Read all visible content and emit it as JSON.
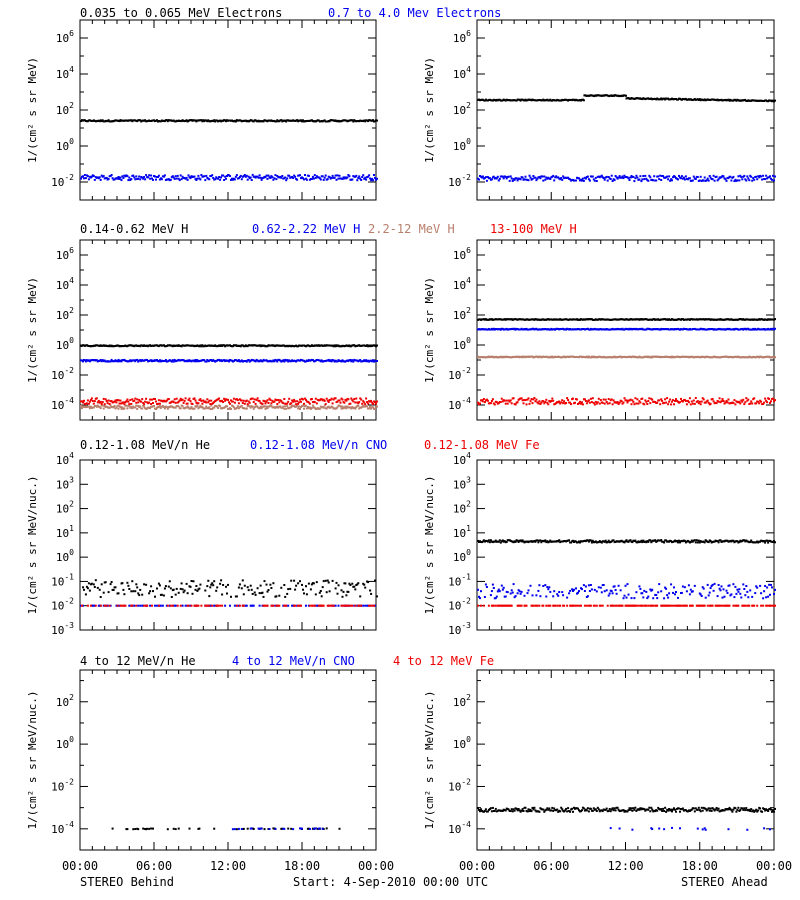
{
  "colors": {
    "black": "#000000",
    "blue": "#0000ee",
    "brown": "#b87f6c",
    "red": "#ee0000"
  },
  "footer": {
    "left": "STEREO Behind",
    "center": "Start:  4-Sep-2010 00:00 UTC",
    "right": "STEREO Ahead"
  },
  "chart_data": [
    {
      "type": "scatter",
      "row": 0,
      "legend": [
        {
          "text": "0.035 to 0.065 MeV Electrons",
          "color": "black"
        },
        {
          "text": "0.7 to 4.0 Mev Electrons",
          "color": "blue"
        }
      ],
      "ylabel": "1/(cm² s sr MeV)",
      "yscale": "log",
      "ylim_exp": [
        -3,
        7
      ],
      "ytick_exps": [
        -2,
        0,
        2,
        4,
        6
      ],
      "x_ticks": [
        "00:00",
        "06:00",
        "12:00",
        "18:00",
        "00:00"
      ],
      "xlim_hours": [
        0,
        24
      ],
      "panels": [
        {
          "name": "STEREO Behind",
          "series": [
            {
              "color": "black",
              "segments": [
                [
                  0,
                  24,
                  1.4
                ]
              ],
              "noise": 0.04
            },
            {
              "color": "blue",
              "segments": [
                [
                  0,
                  24,
                  -1.75
                ]
              ],
              "noise": 0.15
            }
          ]
        },
        {
          "name": "STEREO Ahead",
          "series": [
            {
              "color": "black",
              "segments": [
                [
                  0,
                  8.6,
                  2.55
                ],
                [
                  8.6,
                  12,
                  2.8
                ],
                [
                  12,
                  24,
                  2.65,
                  2.5
                ]
              ],
              "noise": 0.03
            },
            {
              "color": "blue",
              "segments": [
                [
                  0,
                  24,
                  -1.8
                ]
              ],
              "noise": 0.15
            }
          ]
        }
      ]
    },
    {
      "type": "scatter",
      "row": 1,
      "legend": [
        {
          "text": "0.14-0.62 MeV H",
          "color": "black"
        },
        {
          "text": "0.62-2.22 MeV H",
          "color": "blue"
        },
        {
          "text": "2.2-12 MeV H",
          "color": "brown"
        },
        {
          "text": "13-100 MeV H",
          "color": "red"
        }
      ],
      "ylabel": "1/(cm² s sr MeV)",
      "yscale": "log",
      "ylim_exp": [
        -5,
        7
      ],
      "ytick_exps": [
        -4,
        -2,
        0,
        2,
        4,
        6
      ],
      "x_ticks": [
        "00:00",
        "06:00",
        "12:00",
        "18:00",
        "00:00"
      ],
      "xlim_hours": [
        0,
        24
      ],
      "panels": [
        {
          "name": "STEREO Behind",
          "series": [
            {
              "color": "black",
              "segments": [
                [
                  0,
                  24,
                  -0.05
                ]
              ],
              "noise": 0.04
            },
            {
              "color": "blue",
              "segments": [
                [
                  0,
                  24,
                  -1.05
                ]
              ],
              "noise": 0.06
            },
            {
              "color": "brown",
              "segments": [
                [
                  0,
                  24,
                  -4.15
                ]
              ],
              "noise": 0.12
            },
            {
              "color": "red",
              "segments": [
                [
                  0,
                  24,
                  -3.75
                ]
              ],
              "noise": 0.2
            }
          ]
        },
        {
          "name": "STEREO Ahead",
          "series": [
            {
              "color": "black",
              "segments": [
                [
                  0,
                  24,
                  1.7
                ]
              ],
              "noise": 0.03
            },
            {
              "color": "blue",
              "segments": [
                [
                  0,
                  24,
                  1.05
                ]
              ],
              "noise": 0.03
            },
            {
              "color": "brown",
              "segments": [
                [
                  0,
                  24,
                  -0.8
                ]
              ],
              "noise": 0.03
            },
            {
              "color": "red",
              "segments": [
                [
                  0,
                  24,
                  -3.75
                ]
              ],
              "noise": 0.22
            }
          ]
        }
      ]
    },
    {
      "type": "scatter",
      "row": 2,
      "legend": [
        {
          "text": "0.12-1.08 MeV/n He",
          "color": "black"
        },
        {
          "text": "0.12-1.08 MeV/n CNO",
          "color": "blue"
        },
        {
          "text": "0.12-1.08 MeV Fe",
          "color": "red"
        }
      ],
      "ylabel": "1/(cm² s sr MeV/nuc.)",
      "yscale": "log",
      "ylim_exp": [
        -3,
        4
      ],
      "ytick_exps": [
        -3,
        -2,
        -1,
        0,
        1,
        2,
        3,
        4
      ],
      "x_ticks": [
        "00:00",
        "06:00",
        "12:00",
        "18:00",
        "00:00"
      ],
      "xlim_hours": [
        0,
        24
      ],
      "panels": [
        {
          "name": "STEREO Behind",
          "series": [
            {
              "color": "black",
              "segments": [
                [
                  0,
                  24,
                  -1.3
                ]
              ],
              "noise": 0.35,
              "density": 0.7
            },
            {
              "color": "blue",
              "segments": [
                [
                  0,
                  24,
                  -2.0
                ]
              ],
              "noise": 0,
              "density": 0.4
            },
            {
              "color": "red",
              "segments": [
                [
                  0,
                  24,
                  -2.0
                ]
              ],
              "noise": 0,
              "density": 0.3
            }
          ]
        },
        {
          "name": "STEREO Ahead",
          "series": [
            {
              "color": "black",
              "segments": [
                [
                  0,
                  24,
                  0.65
                ]
              ],
              "noise": 0.05
            },
            {
              "color": "blue",
              "segments": [
                [
                  0,
                  24,
                  -1.4
                ]
              ],
              "noise": 0.3,
              "density": 0.7
            },
            {
              "color": "red",
              "segments": [
                [
                  0,
                  24,
                  -2.0
                ]
              ],
              "noise": 0,
              "density": 0.6
            }
          ]
        }
      ]
    },
    {
      "type": "scatter",
      "row": 3,
      "legend": [
        {
          "text": "4 to 12 MeV/n He",
          "color": "black"
        },
        {
          "text": "4 to 12 MeV/n CNO",
          "color": "blue"
        },
        {
          "text": "4 to 12 MeV Fe",
          "color": "red"
        }
      ],
      "ylabel": "1/(cm² s sr MeV/nuc.)",
      "yscale": "log",
      "ylim_exp": [
        -5,
        3.5
      ],
      "ytick_exps": [
        -4,
        -2,
        0,
        2
      ],
      "x_ticks": [
        "00:00",
        "06:00",
        "12:00",
        "18:00",
        "00:00"
      ],
      "xlim_hours": [
        0,
        24
      ],
      "panels": [
        {
          "name": "STEREO Behind",
          "series": [
            {
              "color": "black",
              "segments": [
                [
                  2,
                  21,
                  -4.0
                ]
              ],
              "noise": 0.02,
              "density": 0.2
            },
            {
              "color": "blue",
              "segments": [
                [
                  12,
                  20,
                  -4.0
                ]
              ],
              "noise": 0.02,
              "density": 0.25
            }
          ]
        },
        {
          "name": "STEREO Ahead",
          "series": [
            {
              "color": "black",
              "segments": [
                [
                  0,
                  24,
                  -3.1
                ]
              ],
              "noise": 0.1
            },
            {
              "color": "blue",
              "segments": [
                [
                  10,
                  24,
                  -4.0
                ]
              ],
              "noise": 0.05,
              "density": 0.05
            }
          ]
        }
      ]
    }
  ]
}
